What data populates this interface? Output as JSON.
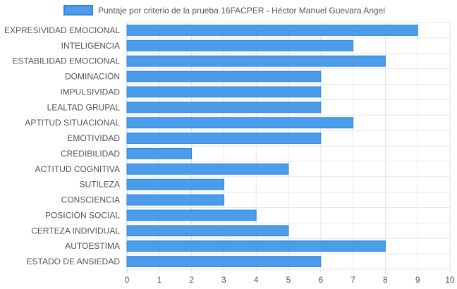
{
  "chart_data": {
    "type": "bar",
    "orientation": "horizontal",
    "legend": {
      "position": "top",
      "label": "Puntaje por criterio de la prueba 16FACPER - Héctor Manuel Guevara Angel"
    },
    "categories": [
      "EXPRESIVIDAD EMOCIONAL",
      "INTELIGENCIA",
      "ESTABILIDAD EMOCIONAL",
      "DOMINACIÓN",
      "IMPULSIVIDAD",
      "LEALTAD GRUPAL",
      "APTITUD SITUACIONAL",
      "EMOTIVIDAD",
      "CREDIBILIDAD",
      "ACTITUD COGNITIVA",
      "SUTILEZA",
      "CONSCIENCIA",
      "POSICIÓN SOCIAL",
      "CERTEZA INDIVIDUAL",
      "AUTOESTIMA",
      "ESTADO DE ANSIEDAD"
    ],
    "series": [
      {
        "name": "Puntaje por criterio de la prueba 16FACPER - Héctor Manuel Guevara Angel",
        "values": [
          9,
          7,
          8,
          6,
          6,
          6,
          7,
          6,
          2,
          5,
          3,
          3,
          4,
          5,
          8,
          6
        ]
      }
    ],
    "xlim": [
      0,
      10
    ],
    "xticks": [
      "0",
      "1",
      "2",
      "3",
      "4",
      "5",
      "6",
      "7",
      "8",
      "9",
      "10"
    ],
    "grid": true,
    "colors": {
      "bar_fill": "#4b9cea",
      "bar_border": "#2f86de",
      "grid": "#e6e6e6",
      "axis": "#c8c8c8"
    }
  }
}
